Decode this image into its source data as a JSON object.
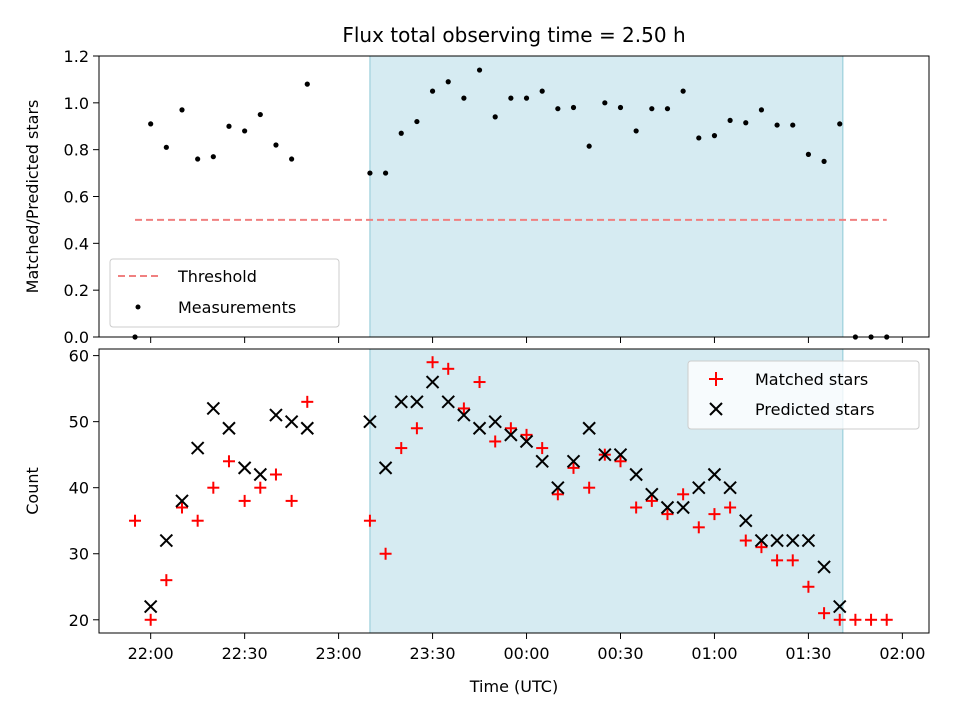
{
  "chart_data": {
    "type": "scatter",
    "title": "Flux total observing time = 2.50 h",
    "xlabel": "Time (UTC)",
    "x_ticks": [
      "22:00",
      "22:30",
      "23:00",
      "23:30",
      "00:00",
      "00:30",
      "01:00",
      "01:30",
      "02:00"
    ],
    "x_tick_minutes": [
      1320,
      1350,
      1380,
      1410,
      1440,
      1470,
      1500,
      1530,
      1560
    ],
    "xlim_minutes": [
      1303.5,
      1568.5
    ],
    "highlight_span_minutes": [
      1390,
      1541
    ],
    "highlight_color": "#add8e6",
    "panels": [
      {
        "ylabel": "Matched/Predicted stars",
        "ylim": [
          0,
          1.2
        ],
        "y_ticks": [
          "0.0",
          "0.2",
          "0.4",
          "0.6",
          "0.8",
          "1.0",
          "1.2"
        ],
        "y_tick_values": [
          0,
          0.2,
          0.4,
          0.6,
          0.8,
          1.0,
          1.2
        ],
        "threshold": {
          "name": "Threshold",
          "value": 0.5,
          "x_range": [
            1315,
            1555
          ],
          "color": "#f08080"
        },
        "series": [
          {
            "name": "Measurements",
            "color": "#000000",
            "marker": "dot",
            "x": [
              1315,
              1320,
              1325,
              1330,
              1335,
              1340,
              1345,
              1350,
              1355,
              1360,
              1365,
              1370,
              1375,
              1390,
              1395,
              1400,
              1405,
              1410,
              1415,
              1420,
              1425,
              1430,
              1435,
              1440,
              1445,
              1450,
              1455,
              1460,
              1465,
              1470,
              1475,
              1480,
              1485,
              1490,
              1495,
              1500,
              1505,
              1510,
              1515,
              1520,
              1525,
              1530,
              1535,
              1540,
              1545,
              1550,
              1555
            ],
            "y": [
              0,
              0.91,
              0.81,
              0.97,
              0.76,
              0.77,
              0.9,
              0.88,
              0.95,
              0.82,
              0.76,
              1.08,
              null,
              0.7,
              0.7,
              0.87,
              0.92,
              1.05,
              1.09,
              1.02,
              1.14,
              0.94,
              1.02,
              1.02,
              1.05,
              0.975,
              0.98,
              0.815,
              1.0,
              0.98,
              0.88,
              0.975,
              0.975,
              1.05,
              0.85,
              0.86,
              0.925,
              0.915,
              0.97,
              0.905,
              0.905,
              0.78,
              0.75,
              0.91,
              0,
              0,
              0
            ]
          }
        ]
      },
      {
        "ylabel": "Count",
        "ylim": [
          18,
          61
        ],
        "y_ticks": [
          "20",
          "30",
          "40",
          "50",
          "60"
        ],
        "y_tick_values": [
          20,
          30,
          40,
          50,
          60
        ],
        "series": [
          {
            "name": "Matched stars",
            "color": "#ff0000",
            "marker": "plus",
            "x": [
              1315,
              1320,
              1325,
              1330,
              1335,
              1340,
              1345,
              1350,
              1355,
              1360,
              1365,
              1370,
              1375,
              1390,
              1395,
              1400,
              1405,
              1410,
              1415,
              1420,
              1425,
              1430,
              1435,
              1440,
              1445,
              1450,
              1455,
              1460,
              1465,
              1470,
              1475,
              1480,
              1485,
              1490,
              1495,
              1500,
              1505,
              1510,
              1515,
              1520,
              1525,
              1530,
              1535,
              1540,
              1545,
              1550,
              1555
            ],
            "y": [
              35,
              20,
              26,
              37,
              35,
              40,
              44,
              38,
              40,
              42,
              38,
              53,
              null,
              35,
              30,
              46,
              49,
              59,
              58,
              52,
              56,
              47,
              49,
              48,
              46,
              39,
              43,
              40,
              45,
              44,
              37,
              38,
              36,
              39,
              34,
              36,
              37,
              32,
              31,
              29,
              29,
              25,
              21,
              20,
              20,
              20,
              20
            ]
          },
          {
            "name": "Predicted stars",
            "color": "#000000",
            "marker": "x",
            "x": [
              1315,
              1320,
              1325,
              1330,
              1335,
              1340,
              1345,
              1350,
              1355,
              1360,
              1365,
              1370,
              1375,
              1390,
              1395,
              1400,
              1405,
              1410,
              1415,
              1420,
              1425,
              1430,
              1435,
              1440,
              1445,
              1450,
              1455,
              1460,
              1465,
              1470,
              1475,
              1480,
              1485,
              1490,
              1495,
              1500,
              1505,
              1510,
              1515,
              1520,
              1525,
              1530,
              1535,
              1540,
              1545,
              1550,
              1555
            ],
            "y": [
              null,
              22,
              32,
              38,
              46,
              52,
              49,
              43,
              42,
              51,
              50,
              49,
              null,
              50,
              43,
              53,
              53,
              56,
              53,
              51,
              49,
              50,
              48,
              47,
              44,
              40,
              44,
              49,
              45,
              45,
              42,
              39,
              37,
              37,
              40,
              42,
              40,
              35,
              32,
              32,
              32,
              32,
              28,
              22,
              null,
              null,
              null
            ]
          }
        ]
      }
    ]
  }
}
